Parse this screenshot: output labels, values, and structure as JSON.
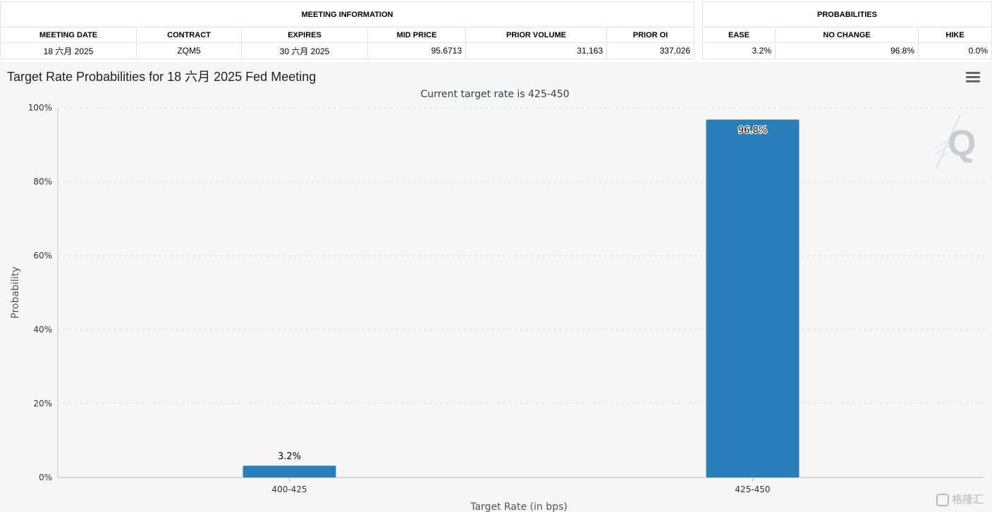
{
  "meeting_info": {
    "heading": "MEETING INFORMATION",
    "columns": [
      "MEETING DATE",
      "CONTRACT",
      "EXPIRES",
      "MID PRICE",
      "PRIOR VOLUME",
      "PRIOR OI"
    ],
    "row": [
      "18 六月 2025",
      "ZQM5",
      "30 六月 2025",
      "95.6713",
      "31,163",
      "337,026"
    ]
  },
  "probabilities": {
    "heading": "PROBABILITIES",
    "columns": [
      "EASE",
      "NO CHANGE",
      "HIKE"
    ],
    "row": [
      "3.2%",
      "96.8%",
      "0.0%"
    ]
  },
  "chart_data": {
    "type": "bar",
    "title": "Target Rate Probabilities for 18 六月 2025 Fed Meeting",
    "subtitle": "Current target rate is 425-450",
    "xlabel": "Target Rate (in bps)",
    "ylabel": "Probability",
    "categories": [
      "400-425",
      "425-450"
    ],
    "values": [
      3.2,
      96.8
    ],
    "data_labels": [
      "3.2%",
      "96.8%"
    ],
    "ylim": [
      0,
      100
    ],
    "yticks": [
      0,
      20,
      40,
      60,
      80,
      100
    ],
    "ytick_labels": [
      "0%",
      "20%",
      "40%",
      "60%",
      "80%",
      "100%"
    ],
    "grid": "horizontal dotted",
    "legend": "none",
    "bar_color": "#2a7fba",
    "background": "#f6f6f6"
  },
  "brand": {
    "watermark": "Q",
    "corner_logo": "格隆汇"
  }
}
